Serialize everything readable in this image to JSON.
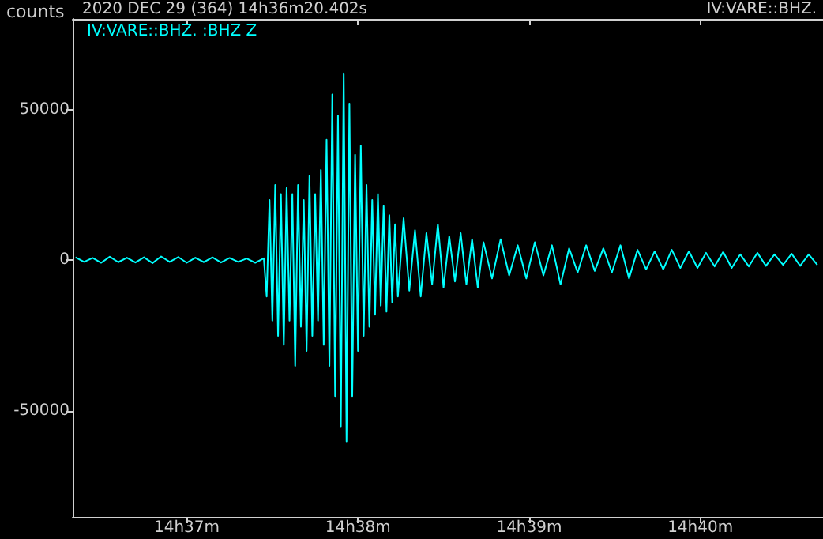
{
  "chart_data": {
    "type": "line",
    "title": "2020 DEC 29 (364) 14h36m20.402s",
    "ylabel": "counts",
    "annotations": [
      "IV:VARE::BHZ."
    ],
    "x": [
      "2020-12-29T14:36:21",
      "2020-12-29T14:36:24",
      "2020-12-29T14:36:27",
      "2020-12-29T14:36:30",
      "2020-12-29T14:36:33",
      "2020-12-29T14:36:36",
      "2020-12-29T14:36:39",
      "2020-12-29T14:36:42",
      "2020-12-29T14:36:45",
      "2020-12-29T14:36:48",
      "2020-12-29T14:36:51",
      "2020-12-29T14:36:54",
      "2020-12-29T14:36:57",
      "2020-12-29T14:37:00",
      "2020-12-29T14:37:03",
      "2020-12-29T14:37:06",
      "2020-12-29T14:37:09",
      "2020-12-29T14:37:12",
      "2020-12-29T14:37:15",
      "2020-12-29T14:37:18",
      "2020-12-29T14:37:21",
      "2020-12-29T14:37:24",
      "2020-12-29T14:37:27",
      "2020-12-29T14:37:28",
      "2020-12-29T14:37:29",
      "2020-12-29T14:37:30",
      "2020-12-29T14:37:31",
      "2020-12-29T14:37:32",
      "2020-12-29T14:37:33",
      "2020-12-29T14:37:34",
      "2020-12-29T14:37:35",
      "2020-12-29T14:37:36",
      "2020-12-29T14:37:37",
      "2020-12-29T14:37:38",
      "2020-12-29T14:37:39",
      "2020-12-29T14:37:40",
      "2020-12-29T14:37:41",
      "2020-12-29T14:37:42",
      "2020-12-29T14:37:43",
      "2020-12-29T14:37:44",
      "2020-12-29T14:37:45",
      "2020-12-29T14:37:46",
      "2020-12-29T14:37:47",
      "2020-12-29T14:37:48",
      "2020-12-29T14:37:49",
      "2020-12-29T14:37:50",
      "2020-12-29T14:37:51",
      "2020-12-29T14:37:52",
      "2020-12-29T14:37:53",
      "2020-12-29T14:37:54",
      "2020-12-29T14:37:55",
      "2020-12-29T14:37:56",
      "2020-12-29T14:37:57",
      "2020-12-29T14:37:58",
      "2020-12-29T14:37:59",
      "2020-12-29T14:38:00",
      "2020-12-29T14:38:01",
      "2020-12-29T14:38:02",
      "2020-12-29T14:38:03",
      "2020-12-29T14:38:04",
      "2020-12-29T14:38:05",
      "2020-12-29T14:38:06",
      "2020-12-29T14:38:07",
      "2020-12-29T14:38:08",
      "2020-12-29T14:38:09",
      "2020-12-29T14:38:10",
      "2020-12-29T14:38:11",
      "2020-12-29T14:38:12",
      "2020-12-29T14:38:13",
      "2020-12-29T14:38:14",
      "2020-12-29T14:38:16",
      "2020-12-29T14:38:18",
      "2020-12-29T14:38:20",
      "2020-12-29T14:38:22",
      "2020-12-29T14:38:24",
      "2020-12-29T14:38:26",
      "2020-12-29T14:38:28",
      "2020-12-29T14:38:30",
      "2020-12-29T14:38:32",
      "2020-12-29T14:38:34",
      "2020-12-29T14:38:36",
      "2020-12-29T14:38:38",
      "2020-12-29T14:38:40",
      "2020-12-29T14:38:42",
      "2020-12-29T14:38:44",
      "2020-12-29T14:38:47",
      "2020-12-29T14:38:50",
      "2020-12-29T14:38:53",
      "2020-12-29T14:38:56",
      "2020-12-29T14:38:59",
      "2020-12-29T14:39:02",
      "2020-12-29T14:39:05",
      "2020-12-29T14:39:08",
      "2020-12-29T14:39:11",
      "2020-12-29T14:39:14",
      "2020-12-29T14:39:17",
      "2020-12-29T14:39:20",
      "2020-12-29T14:39:23",
      "2020-12-29T14:39:26",
      "2020-12-29T14:39:29",
      "2020-12-29T14:39:32",
      "2020-12-29T14:39:35",
      "2020-12-29T14:39:38",
      "2020-12-29T14:39:41",
      "2020-12-29T14:39:44",
      "2020-12-29T14:39:47",
      "2020-12-29T14:39:50",
      "2020-12-29T14:39:53",
      "2020-12-29T14:39:56",
      "2020-12-29T14:39:59",
      "2020-12-29T14:40:02",
      "2020-12-29T14:40:05",
      "2020-12-29T14:40:08",
      "2020-12-29T14:40:11",
      "2020-12-29T14:40:14",
      "2020-12-29T14:40:17",
      "2020-12-29T14:40:20",
      "2020-12-29T14:40:23",
      "2020-12-29T14:40:26",
      "2020-12-29T14:40:29",
      "2020-12-29T14:40:32",
      "2020-12-29T14:40:35",
      "2020-12-29T14:40:38",
      "2020-12-29T14:40:41"
    ],
    "series": [
      {
        "name": "IV:VARE::BHZ. :BHZ Z",
        "color": "#00ffff",
        "values": [
          1000,
          -500,
          800,
          -800,
          1200,
          -600,
          900,
          -700,
          1000,
          -900,
          1300,
          -500,
          1100,
          -800,
          900,
          -600,
          1000,
          -700,
          800,
          -500,
          600,
          -800,
          700,
          -12000,
          20000,
          -20000,
          25000,
          -25000,
          22000,
          -28000,
          24000,
          -20000,
          22000,
          -35000,
          25000,
          -22000,
          20000,
          -30000,
          28000,
          -25000,
          22000,
          -20000,
          30000,
          -28000,
          40000,
          -35000,
          55000,
          -45000,
          48000,
          -55000,
          62000,
          -60000,
          52000,
          -45000,
          35000,
          -30000,
          38000,
          -25000,
          25000,
          -22000,
          20000,
          -18000,
          22000,
          -15000,
          18000,
          -17000,
          15000,
          -14000,
          12000,
          -12000,
          14000,
          -10000,
          10000,
          -12000,
          9000,
          -8000,
          12000,
          -9000,
          8000,
          -7000,
          9000,
          -8000,
          7000,
          -9000,
          6000,
          -6000,
          7000,
          -5000,
          5000,
          -6000,
          6000,
          -5000,
          5000,
          -8000,
          4000,
          -4000,
          5000,
          -3500,
          4000,
          -4000,
          5000,
          -6000,
          3500,
          -3000,
          3000,
          -3000,
          3500,
          -2500,
          3000,
          -2500,
          2500,
          -2000,
          2800,
          -2500,
          2000,
          -2000,
          2500,
          -1800,
          2000,
          -1500,
          2200,
          -1800,
          2000,
          -1500
        ]
      }
    ],
    "xlim": [
      "2020-12-29T14:36:20",
      "2020-12-29T14:40:43"
    ],
    "xticks": [
      {
        "value": "2020-12-29T14:37",
        "label": "14h37m"
      },
      {
        "value": "2020-12-29T14:38",
        "label": "14h38m"
      },
      {
        "value": "2020-12-29T14:39",
        "label": "14h39m"
      },
      {
        "value": "2020-12-29T14:40",
        "label": "14h40m"
      }
    ],
    "ylim": [
      -85000,
      80000
    ],
    "yticks": [
      -50000,
      0,
      50000
    ],
    "grid": false,
    "legend": "top left",
    "marker": "none",
    "line_style": "solid"
  }
}
